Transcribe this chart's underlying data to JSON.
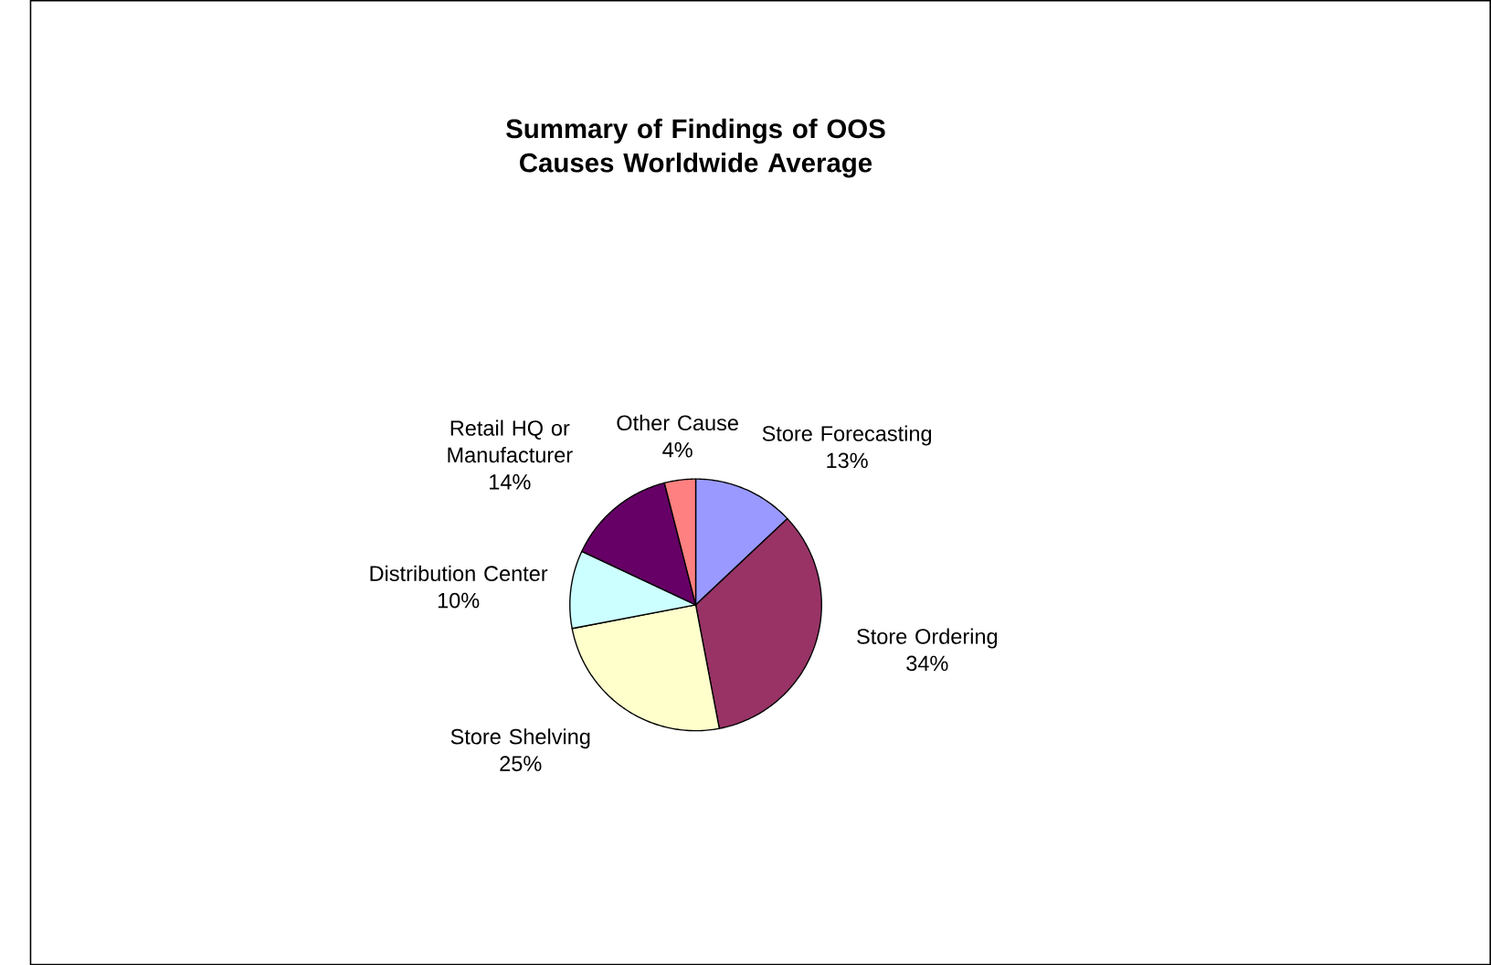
{
  "chart_data": {
    "type": "pie",
    "title": "Summary of Findings of OOS Causes Worldwide Average",
    "categories": [
      "Store Forecasting",
      "Store Ordering",
      "Store Shelving",
      "Distribution Center",
      "Retail HQ or Manufacturer",
      "Other Cause"
    ],
    "values": [
      13,
      34,
      25,
      10,
      14,
      4
    ],
    "value_labels": [
      "13%",
      "34%",
      "25%",
      "10%",
      "14%",
      "4%"
    ],
    "colors": [
      "#9999ff",
      "#993366",
      "#ffffcc",
      "#ccffff",
      "#660066",
      "#ff8080"
    ],
    "legend": false
  }
}
